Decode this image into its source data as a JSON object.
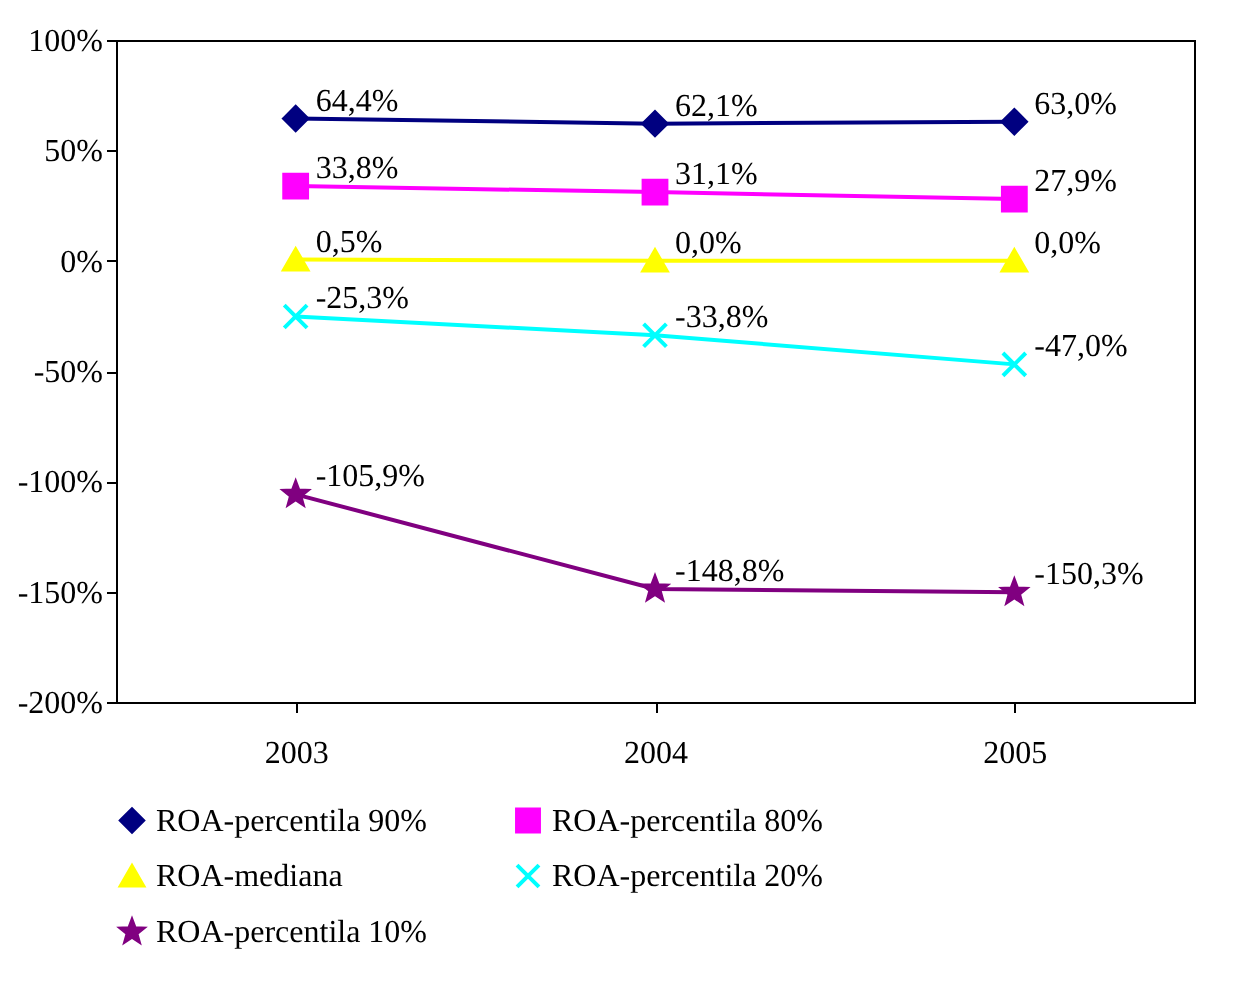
{
  "chart_data": {
    "type": "line",
    "categories": [
      "2003",
      "2004",
      "2005"
    ],
    "ylim": [
      -200,
      100
    ],
    "yticks": [
      {
        "value": -200,
        "label": "-200%"
      },
      {
        "value": -150,
        "label": "-150%"
      },
      {
        "value": -100,
        "label": "-100%"
      },
      {
        "value": -50,
        "label": "-50%"
      },
      {
        "value": 0,
        "label": "0%"
      },
      {
        "value": 50,
        "label": "50%"
      },
      {
        "value": 100,
        "label": "100%"
      }
    ],
    "grid": false,
    "legend": "bottom",
    "series": [
      {
        "name": "ROA-percentila 90%",
        "color": "#000080",
        "marker": "diamond",
        "values": [
          64.4,
          62.1,
          63.0
        ],
        "value_labels": [
          "64,4%",
          "62,1%",
          "63,0%"
        ]
      },
      {
        "name": "ROA-percentila 80%",
        "color": "#ff00ff",
        "marker": "square",
        "values": [
          33.8,
          31.1,
          27.9
        ],
        "value_labels": [
          "33,8%",
          "31,1%",
          "27,9%"
        ]
      },
      {
        "name": "ROA-mediana",
        "color": "#ffff00",
        "marker": "triangle",
        "values": [
          0.5,
          0.0,
          0.0
        ],
        "value_labels": [
          "0,5%",
          "0,0%",
          "0,0%"
        ]
      },
      {
        "name": "ROA-percentila 20%",
        "color": "#00ffff",
        "marker": "cross",
        "values": [
          -25.3,
          -33.8,
          -47.0
        ],
        "value_labels": [
          "-25,3%",
          "-33,8%",
          "-47,0%"
        ]
      },
      {
        "name": "ROA-percentila 10%",
        "color": "#800080",
        "marker": "star",
        "values": [
          -105.9,
          -148.8,
          -150.3
        ],
        "value_labels": [
          "-105,9%",
          "-148,8%",
          "-150,3%"
        ]
      }
    ]
  }
}
